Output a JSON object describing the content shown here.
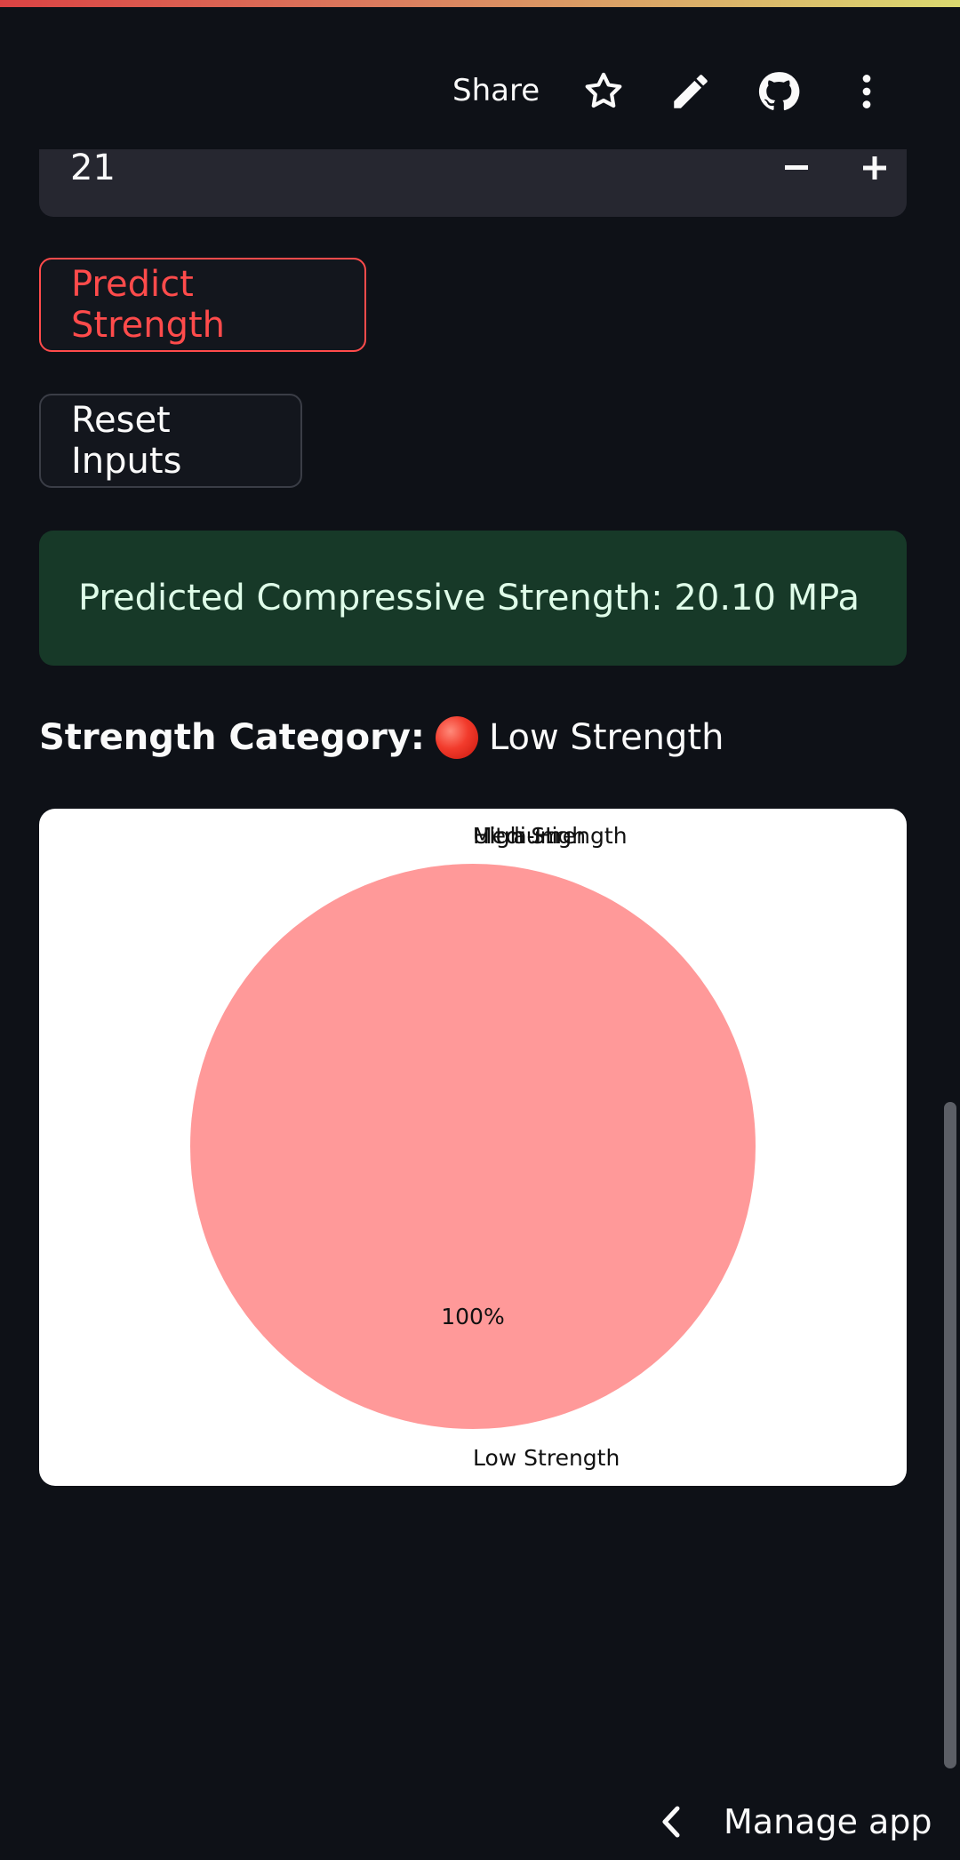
{
  "header": {
    "share_label": "Share",
    "icons": [
      "star-icon",
      "pencil-icon",
      "github-icon",
      "more-vertical-icon"
    ]
  },
  "number_input": {
    "value": "21",
    "minus_label": "−",
    "plus_label": "+"
  },
  "buttons": {
    "predict_label": "Predict Strength",
    "reset_label": "Reset Inputs"
  },
  "result": {
    "message": "Predicted Compressive Strength: 20.10 MPa"
  },
  "category": {
    "label": "Strength Category:",
    "value": "Low Strength",
    "indicator_color": "#f23b2c"
  },
  "chart_data": {
    "type": "pie",
    "labels": [
      "Low Strength",
      "Medium",
      "High Strength",
      "Ultra-High"
    ],
    "values": [
      100,
      0,
      0,
      0
    ],
    "autopct_labels": [
      "100%"
    ],
    "colors": [
      "#ff9999",
      "#66b3ff",
      "#99ff99",
      "#ffcc99"
    ]
  },
  "colors": {
    "background": "#0e1117",
    "accent": "#ff4b4b",
    "success_bg": "#173928",
    "input_bg": "#262730"
  },
  "footer": {
    "manage_label": "Manage app"
  }
}
